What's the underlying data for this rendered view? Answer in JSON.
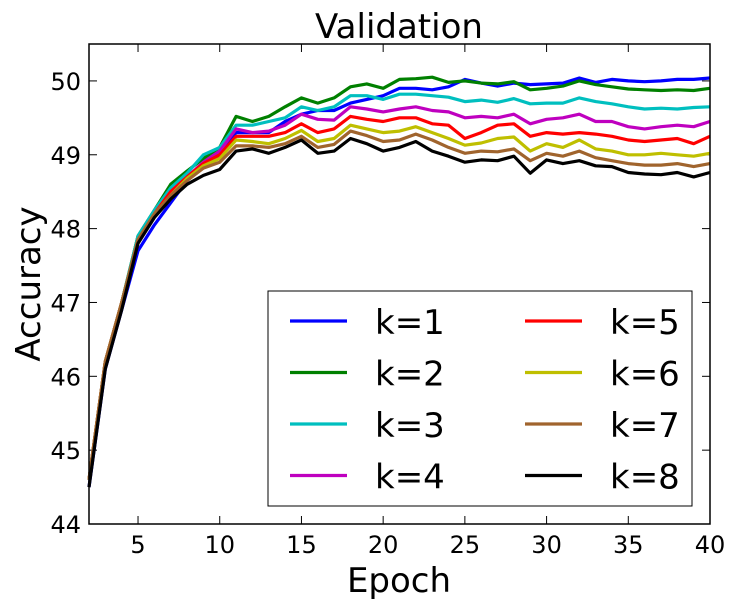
{
  "chart_data": {
    "type": "line",
    "title": "Validation",
    "xlabel": "Epoch",
    "ylabel": "Accuracy",
    "xlim": [
      2,
      40
    ],
    "ylim": [
      44,
      50.5
    ],
    "xticks": [
      5,
      10,
      15,
      20,
      25,
      30,
      35,
      40
    ],
    "yticks": [
      44,
      45,
      46,
      47,
      48,
      49,
      50
    ],
    "legend_position": "lower-right",
    "legend_columns": 2,
    "x": [
      2,
      3,
      4,
      5,
      6,
      7,
      8,
      9,
      10,
      11,
      12,
      13,
      14,
      15,
      16,
      17,
      18,
      19,
      20,
      21,
      22,
      23,
      24,
      25,
      26,
      27,
      28,
      29,
      30,
      31,
      32,
      33,
      34,
      35,
      36,
      37,
      38,
      39,
      40
    ],
    "series": [
      {
        "name": "k=1",
        "color": "#0000ff",
        "values": [
          44.5,
          46.1,
          46.9,
          47.7,
          48.05,
          48.35,
          48.65,
          48.85,
          49.0,
          49.3,
          49.3,
          49.3,
          49.45,
          49.55,
          49.6,
          49.6,
          49.7,
          49.75,
          49.8,
          49.9,
          49.9,
          49.88,
          49.92,
          50.02,
          49.97,
          49.93,
          49.97,
          49.95,
          49.96,
          49.97,
          50.04,
          49.98,
          50.02,
          50.0,
          49.99,
          50.0,
          50.02,
          50.02,
          50.04
        ]
      },
      {
        "name": "k=2",
        "color": "#008000",
        "values": [
          44.6,
          46.2,
          47.0,
          47.9,
          48.25,
          48.6,
          48.78,
          48.95,
          49.1,
          49.52,
          49.45,
          49.52,
          49.65,
          49.77,
          49.7,
          49.77,
          49.92,
          49.96,
          49.9,
          50.02,
          50.03,
          50.05,
          49.98,
          50.0,
          49.97,
          49.96,
          49.99,
          49.88,
          49.9,
          49.93,
          50.0,
          49.95,
          49.92,
          49.89,
          49.88,
          49.87,
          49.88,
          49.87,
          49.9
        ]
      },
      {
        "name": "k=3",
        "color": "#00bfbf",
        "values": [
          44.6,
          46.2,
          47.0,
          47.9,
          48.25,
          48.55,
          48.75,
          49.0,
          49.1,
          49.4,
          49.4,
          49.45,
          49.5,
          49.65,
          49.6,
          49.65,
          49.8,
          49.8,
          49.75,
          49.82,
          49.82,
          49.8,
          49.78,
          49.72,
          49.74,
          49.71,
          49.76,
          49.69,
          49.7,
          49.7,
          49.77,
          49.72,
          49.69,
          49.65,
          49.62,
          49.63,
          49.62,
          49.64,
          49.65
        ]
      },
      {
        "name": "k=4",
        "color": "#bf00bf",
        "values": [
          44.6,
          46.2,
          47.0,
          47.85,
          48.2,
          48.5,
          48.7,
          48.9,
          49.05,
          49.35,
          49.3,
          49.32,
          49.4,
          49.55,
          49.48,
          49.47,
          49.65,
          49.62,
          49.58,
          49.62,
          49.65,
          49.6,
          49.58,
          49.5,
          49.52,
          49.5,
          49.55,
          49.42,
          49.48,
          49.5,
          49.55,
          49.45,
          49.45,
          49.38,
          49.35,
          49.38,
          49.4,
          49.38,
          49.45
        ]
      },
      {
        "name": "k=5",
        "color": "#ff0000",
        "values": [
          44.6,
          46.2,
          47.0,
          47.85,
          48.2,
          48.5,
          48.7,
          48.88,
          49.0,
          49.25,
          49.25,
          49.25,
          49.3,
          49.42,
          49.3,
          49.35,
          49.52,
          49.48,
          49.45,
          49.5,
          49.5,
          49.42,
          49.4,
          49.22,
          49.3,
          49.4,
          49.42,
          49.25,
          49.3,
          49.28,
          49.3,
          49.28,
          49.25,
          49.2,
          49.18,
          49.2,
          49.22,
          49.15,
          49.25
        ]
      },
      {
        "name": "k=6",
        "color": "#bfbf00",
        "values": [
          44.6,
          46.2,
          47.0,
          47.85,
          48.2,
          48.45,
          48.68,
          48.85,
          48.95,
          49.2,
          49.18,
          49.15,
          49.22,
          49.33,
          49.18,
          49.22,
          49.4,
          49.35,
          49.3,
          49.32,
          49.38,
          49.3,
          49.22,
          49.13,
          49.16,
          49.22,
          49.24,
          49.05,
          49.15,
          49.1,
          49.2,
          49.08,
          49.05,
          49.0,
          49.0,
          49.02,
          49.0,
          48.98,
          49.02
        ]
      },
      {
        "name": "k=7",
        "color": "#a0642d",
        "values": [
          44.6,
          46.2,
          47.0,
          47.85,
          48.2,
          48.45,
          48.65,
          48.82,
          48.9,
          49.12,
          49.12,
          49.1,
          49.15,
          49.25,
          49.1,
          49.14,
          49.32,
          49.26,
          49.18,
          49.2,
          49.28,
          49.2,
          49.1,
          49.02,
          49.05,
          49.04,
          49.08,
          48.92,
          49.02,
          48.98,
          49.05,
          48.96,
          48.92,
          48.88,
          48.86,
          48.86,
          48.88,
          48.84,
          48.88
        ]
      },
      {
        "name": "k=8",
        "color": "#000000",
        "values": [
          44.5,
          46.1,
          46.9,
          47.8,
          48.15,
          48.4,
          48.6,
          48.72,
          48.8,
          49.05,
          49.08,
          49.02,
          49.1,
          49.2,
          49.02,
          49.05,
          49.22,
          49.15,
          49.05,
          49.1,
          49.18,
          49.05,
          48.98,
          48.9,
          48.93,
          48.92,
          48.98,
          48.75,
          48.93,
          48.88,
          48.92,
          48.85,
          48.84,
          48.76,
          48.74,
          48.73,
          48.76,
          48.7,
          48.76
        ]
      }
    ]
  }
}
